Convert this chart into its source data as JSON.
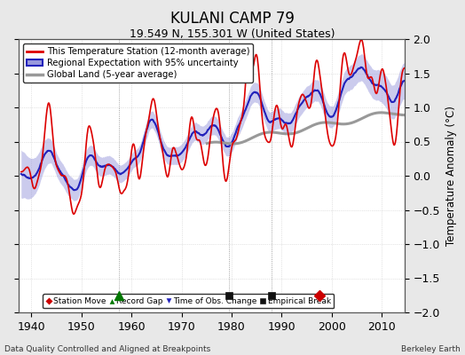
{
  "title": "KULANI CAMP 79",
  "subtitle": "19.549 N, 155.301 W (United States)",
  "ylabel": "Temperature Anomaly (°C)",
  "xlabel_bottom_left": "Data Quality Controlled and Aligned at Breakpoints",
  "xlabel_bottom_right": "Berkeley Earth",
  "ylim": [
    -2,
    2
  ],
  "xlim": [
    1937.5,
    2014.5
  ],
  "xticks": [
    1940,
    1950,
    1960,
    1970,
    1980,
    1990,
    2000,
    2010
  ],
  "yticks": [
    -2,
    -1.5,
    -1,
    -0.5,
    0,
    0.5,
    1,
    1.5,
    2
  ],
  "bg_color": "#e8e8e8",
  "plot_bg_color": "#ffffff",
  "grid_color": "#cccccc",
  "red_line_color": "#dd0000",
  "blue_line_color": "#2222bb",
  "blue_band_color": "#9999dd",
  "gray_line_color": "#999999",
  "marker_events": [
    {
      "year": 1997.5,
      "type": "station_move",
      "color": "#cc0000",
      "marker": "D"
    },
    {
      "year": 1957.5,
      "type": "record_gap",
      "color": "#007700",
      "marker": "^"
    },
    {
      "year": 1979.5,
      "type": "empirical_break",
      "color": "#111111",
      "marker": "s"
    },
    {
      "year": 1988.0,
      "type": "empirical_break",
      "color": "#111111",
      "marker": "s"
    }
  ],
  "vlines": [
    1957.5,
    1979.5,
    1988.0
  ],
  "legend_line1": "This Temperature Station (12-month average)",
  "legend_line2": "Regional Expectation with 95% uncertainty",
  "legend_line3": "Global Land (5-year average)",
  "marker_legend": [
    "Station Move",
    "Record Gap",
    "Time of Obs. Change",
    "Empirical Break"
  ]
}
